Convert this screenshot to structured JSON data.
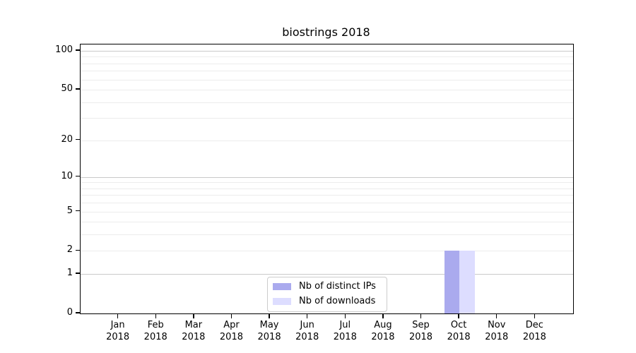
{
  "title": "biostrings 2018",
  "chart_data": {
    "type": "bar",
    "title": "biostrings 2018",
    "categories": [
      "Jan 2018",
      "Feb 2018",
      "Mar 2018",
      "Apr 2018",
      "May 2018",
      "Jun 2018",
      "Jul 2018",
      "Aug 2018",
      "Sep 2018",
      "Oct 2018",
      "Nov 2018",
      "Dec 2018"
    ],
    "series": [
      {
        "name": "Nb of distinct IPs",
        "color": "#aaaaee",
        "values": [
          0,
          0,
          0,
          0,
          0,
          0,
          0,
          0,
          0,
          2,
          0,
          0
        ]
      },
      {
        "name": "Nb of downloads",
        "color": "#ddddff",
        "values": [
          0,
          0,
          0,
          0,
          0,
          0,
          0,
          0,
          0,
          2,
          0,
          0
        ]
      }
    ],
    "xlabel": "",
    "ylabel": "",
    "yscale": "log1p",
    "ylim": [
      0,
      112
    ],
    "yticks": [
      0,
      1,
      2,
      5,
      10,
      20,
      50,
      100
    ],
    "major_gridlines": [
      1,
      10,
      100
    ],
    "minor_gridlines": [
      2,
      3,
      4,
      5,
      6,
      7,
      8,
      9,
      20,
      30,
      40,
      50,
      60,
      70,
      80,
      90
    ],
    "grid": true,
    "legend_position": "lower center",
    "colors": {
      "major_grid": "#c9c9c9",
      "minor_grid": "#ececec",
      "spine": "#000000",
      "background": "#ffffff"
    }
  }
}
